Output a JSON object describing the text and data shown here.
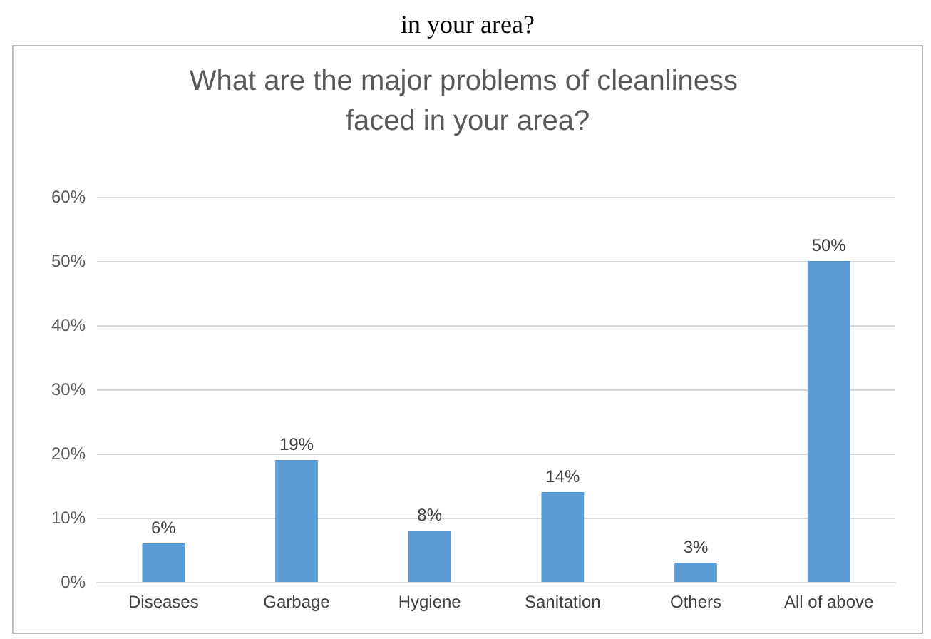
{
  "chart_data": {
    "type": "bar",
    "title": "What are the major problems of cleanliness faced in your area?",
    "annotations": [
      "in your area?"
    ],
    "categories": [
      "Diseases",
      "Garbage",
      "Hygiene",
      "Sanitation",
      "Others",
      "All of above"
    ],
    "values": [
      6,
      19,
      8,
      14,
      3,
      50
    ],
    "value_labels": [
      "6%",
      "19%",
      "8%",
      "14%",
      "3%",
      "50%"
    ],
    "color": "#5b9bd5",
    "ylim": [
      0,
      60
    ],
    "yticks": [
      {
        "value": 0,
        "label": "0%"
      },
      {
        "value": 10,
        "label": "10%"
      },
      {
        "value": 20,
        "label": "20%"
      },
      {
        "value": 30,
        "label": "30%"
      },
      {
        "value": 40,
        "label": "40%"
      },
      {
        "value": 50,
        "label": "50%"
      },
      {
        "value": 60,
        "label": "60%"
      }
    ],
    "grid": "y"
  }
}
